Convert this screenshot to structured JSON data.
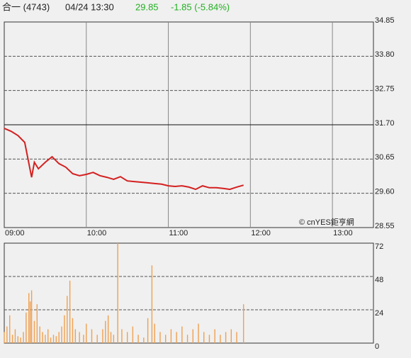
{
  "header": {
    "name": "合一 (4743)",
    "datetime": "04/24 13:30",
    "price": "29.85",
    "change": "-1.85 (-5.84%)"
  },
  "chart_data": [
    {
      "type": "line",
      "color": "#d42020",
      "x": [
        "09:00",
        "09:05",
        "09:10",
        "09:15",
        "09:20",
        "09:22",
        "09:25",
        "09:30",
        "09:35",
        "09:40",
        "09:45",
        "09:50",
        "09:55",
        "10:00",
        "10:05",
        "10:10",
        "10:15",
        "10:20",
        "10:25",
        "10:30",
        "10:35",
        "10:40",
        "10:45",
        "10:50",
        "10:55",
        "11:00",
        "11:05",
        "11:10",
        "11:15",
        "11:20",
        "11:25",
        "11:30",
        "11:35",
        "11:40",
        "11:45",
        "11:50",
        "11:55"
      ],
      "values": [
        31.59,
        31.5,
        31.37,
        31.16,
        30.09,
        30.55,
        30.35,
        30.55,
        30.72,
        30.51,
        30.4,
        30.2,
        30.14,
        30.18,
        30.24,
        30.14,
        30.09,
        30.03,
        30.11,
        29.98,
        29.96,
        29.94,
        29.92,
        29.9,
        29.88,
        29.83,
        29.81,
        29.83,
        29.79,
        29.72,
        29.83,
        29.77,
        29.77,
        29.75,
        29.72,
        29.79,
        29.85
      ],
      "xlim": [
        "09:00",
        "13:30"
      ],
      "xticks": [
        "09:00",
        "10:00",
        "11:00",
        "12:00",
        "13:00"
      ],
      "ylim": [
        28.55,
        34.85
      ],
      "yticks": [
        28.55,
        {
          "value": 29.6,
          "label": "29.60"
        },
        30.65,
        {
          "value": 31.7,
          "label": "31.70"
        },
        32.75,
        {
          "value": 33.8,
          "label": "33.80"
        },
        34.85
      ],
      "reference_line": 31.7,
      "grid": true,
      "watermark": "© cnYES鉅亨網"
    },
    {
      "type": "bar",
      "color": "#f0a050",
      "x": [
        "09:00",
        "09:02",
        "09:04",
        "09:06",
        "09:08",
        "09:10",
        "09:12",
        "09:14",
        "09:16",
        "09:18",
        "09:19",
        "09:20",
        "09:22",
        "09:24",
        "09:26",
        "09:28",
        "09:30",
        "09:32",
        "09:34",
        "09:36",
        "09:38",
        "09:40",
        "09:42",
        "09:44",
        "09:46",
        "09:48",
        "09:50",
        "09:52",
        "09:55",
        "09:58",
        "10:00",
        "10:04",
        "10:08",
        "10:12",
        "10:14",
        "10:16",
        "10:18",
        "10:20",
        "10:23",
        "10:26",
        "10:30",
        "10:34",
        "10:38",
        "10:42",
        "10:45",
        "10:48",
        "10:50",
        "10:54",
        "10:58",
        "11:02",
        "11:06",
        "11:10",
        "11:14",
        "11:18",
        "11:22",
        "11:26",
        "11:30",
        "11:34",
        "11:38",
        "11:42",
        "11:46",
        "11:50",
        "11:55"
      ],
      "values": [
        8,
        12,
        20,
        6,
        10,
        5,
        4,
        8,
        22,
        36,
        30,
        38,
        16,
        28,
        12,
        8,
        6,
        10,
        4,
        6,
        5,
        8,
        12,
        20,
        34,
        45,
        18,
        10,
        8,
        6,
        14,
        10,
        6,
        10,
        16,
        20,
        8,
        6,
        72,
        10,
        8,
        12,
        6,
        4,
        18,
        56,
        14,
        8,
        6,
        10,
        8,
        12,
        6,
        10,
        14,
        8,
        6,
        10,
        6,
        8,
        10,
        8,
        28
      ],
      "xlim": [
        "09:00",
        "13:30"
      ],
      "ylim": [
        0,
        72
      ],
      "yticks": [
        0,
        24,
        48,
        72
      ],
      "grid": true
    }
  ]
}
